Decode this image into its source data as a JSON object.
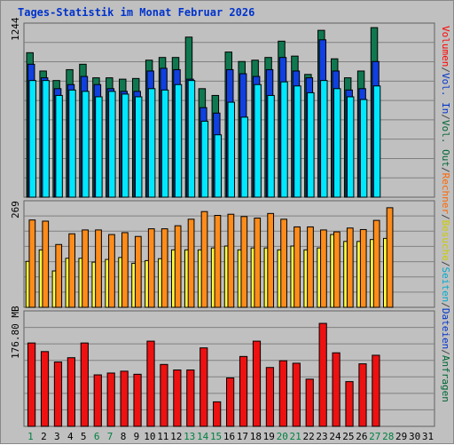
{
  "title": "Tages-Statistik im Monat Februar 2026",
  "legend_top": [
    {
      "text": "Anfragen",
      "color": "#006633"
    },
    {
      "text": "/",
      "color": "#444444"
    },
    {
      "text": "Dateien",
      "color": "#0033cc"
    },
    {
      "text": "/",
      "color": "#444444"
    },
    {
      "text": "Seiten",
      "color": "#00aacc"
    },
    {
      "text": "/",
      "color": "#444444"
    },
    {
      "text": "Besuche",
      "color": "#cccc00"
    },
    {
      "text": "/",
      "color": "#444444"
    },
    {
      "text": "Rechner",
      "color": "#ff6600"
    },
    {
      "text": "/",
      "color": "#444444"
    },
    {
      "text": "Vol. Out",
      "color": "#006633"
    },
    {
      "text": "/",
      "color": "#444444"
    },
    {
      "text": "Vol. In",
      "color": "#0033cc"
    },
    {
      "text": "/",
      "color": "#444444"
    },
    {
      "text": "Volumen",
      "color": "#ff0000"
    }
  ],
  "colors": {
    "anfragen": "#107850",
    "dateien": "#1040e0",
    "seiten": "#00e8ff",
    "besuche": "#ffff40",
    "rechner": "#ff8c1a",
    "volumen": "#ee1111",
    "title": "#0033cc",
    "bg": "#c0c0c0",
    "grid": "#808080",
    "weekend": "#008040",
    "weekday": "#000000"
  },
  "chart_data": [
    {
      "type": "bar",
      "panel": "hits",
      "max_label": "1244",
      "ylim": [
        0,
        1244
      ],
      "x": [
        1,
        2,
        3,
        4,
        5,
        6,
        7,
        8,
        9,
        10,
        11,
        12,
        13,
        14,
        15,
        16,
        17,
        18,
        19,
        20,
        21,
        22,
        23,
        24,
        25,
        26,
        27,
        28
      ],
      "series": [
        {
          "name": "Anfragen",
          "values": [
            1065,
            930,
            860,
            940,
            980,
            880,
            880,
            870,
            875,
            1010,
            1030,
            1030,
            1180,
            800,
            750,
            1070,
            1000,
            1010,
            1030,
            1150,
            1040,
            905,
            1230,
            1020,
            880,
            930,
            1250,
            0
          ]
        },
        {
          "name": "Dateien",
          "values": [
            980,
            880,
            800,
            830,
            890,
            830,
            800,
            780,
            780,
            930,
            950,
            940,
            870,
            660,
            620,
            940,
            910,
            890,
            940,
            1030,
            930,
            880,
            1160,
            930,
            790,
            800,
            1000,
            0
          ]
        },
        {
          "name": "Seiten",
          "values": [
            860,
            860,
            750,
            790,
            780,
            740,
            780,
            760,
            740,
            800,
            790,
            830,
            860,
            560,
            460,
            700,
            590,
            830,
            750,
            850,
            820,
            770,
            860,
            800,
            740,
            720,
            820,
            0
          ]
        }
      ],
      "x_label_colors": [
        "weekend",
        "weekday",
        "weekday",
        "weekday",
        "weekday",
        "weekend",
        "weekend",
        "weekday",
        "weekday",
        "weekday",
        "weekday",
        "weekday",
        "weekend",
        "weekend",
        "weekend",
        "weekday",
        "weekday",
        "weekday",
        "weekday",
        "weekend",
        "weekend",
        "weekday",
        "weekday",
        "weekday",
        "weekday",
        "weekday",
        "weekend",
        "weekend",
        "weekday",
        "weekday",
        "weekday"
      ]
    },
    {
      "type": "bar",
      "panel": "visits",
      "max_label": "269",
      "ylim": [
        0,
        269
      ],
      "x": [
        1,
        2,
        3,
        4,
        5,
        6,
        7,
        8,
        9,
        10,
        11,
        12,
        13,
        14,
        15,
        16,
        17,
        18,
        19,
        20,
        21,
        22,
        23,
        24,
        25,
        26,
        27,
        28
      ],
      "series": [
        {
          "name": "Besuche",
          "values": [
            120,
            150,
            95,
            128,
            128,
            118,
            125,
            130,
            115,
            122,
            127,
            150,
            150,
            150,
            155,
            160,
            150,
            155,
            155,
            150,
            160,
            150,
            155,
            190,
            172,
            172,
            177,
            180
          ]
        },
        {
          "name": "Rechner",
          "values": [
            228,
            225,
            164,
            192,
            202,
            202,
            190,
            195,
            185,
            205,
            205,
            213,
            230,
            250,
            240,
            243,
            237,
            233,
            245,
            230,
            210,
            210,
            202,
            197,
            207,
            203,
            227,
            260
          ]
        }
      ]
    },
    {
      "type": "bar",
      "panel": "volume",
      "max_label": "176.80 MB",
      "ylim": [
        0,
        176.8
      ],
      "x": [
        1,
        2,
        3,
        4,
        5,
        6,
        7,
        8,
        9,
        10,
        11,
        12,
        13,
        14,
        15,
        16,
        17,
        18,
        19,
        20,
        21,
        22,
        23,
        24,
        25,
        26,
        27,
        28
      ],
      "series": [
        {
          "name": "Volumen",
          "values": [
            136,
            122,
            105,
            112,
            136,
            84,
            87,
            90,
            85,
            139,
            101,
            92,
            92,
            128,
            40,
            79,
            114,
            139,
            96,
            107,
            103,
            77,
            168,
            120,
            73,
            102,
            116,
            0
          ]
        }
      ]
    }
  ],
  "x_ticks": [
    "1",
    "2",
    "3",
    "4",
    "5",
    "6",
    "7",
    "8",
    "9",
    "10",
    "11",
    "12",
    "13",
    "14",
    "15",
    "16",
    "17",
    "18",
    "19",
    "20",
    "21",
    "22",
    "23",
    "24",
    "25",
    "26",
    "27",
    "28",
    "29",
    "30",
    "31"
  ]
}
